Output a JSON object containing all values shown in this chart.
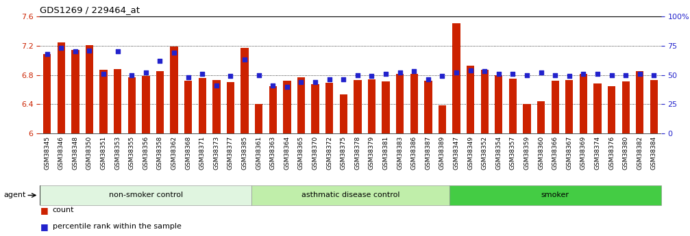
{
  "title": "GDS1269 / 229464_at",
  "ylim_left": [
    6.0,
    7.6
  ],
  "ylim_right": [
    0,
    100
  ],
  "yticks_left": [
    6.0,
    6.4,
    6.8,
    7.2,
    7.6
  ],
  "yticks_right": [
    0,
    25,
    50,
    75,
    100
  ],
  "ytick_labels_left": [
    "6",
    "6.4",
    "6.8",
    "7.2",
    "7.6"
  ],
  "ytick_labels_right": [
    "0",
    "25",
    "50",
    "75",
    "100%"
  ],
  "bar_color": "#cc2200",
  "dot_color": "#2222cc",
  "categories": [
    "GSM38345",
    "GSM38346",
    "GSM38348",
    "GSM38350",
    "GSM38351",
    "GSM38353",
    "GSM38355",
    "GSM38356",
    "GSM38358",
    "GSM38362",
    "GSM38368",
    "GSM38371",
    "GSM38373",
    "GSM38377",
    "GSM38385",
    "GSM38361",
    "GSM38363",
    "GSM38364",
    "GSM38365",
    "GSM38370",
    "GSM38372",
    "GSM38375",
    "GSM38378",
    "GSM38379",
    "GSM38381",
    "GSM38383",
    "GSM38386",
    "GSM38387",
    "GSM38389",
    "GSM38347",
    "GSM38349",
    "GSM38352",
    "GSM38354",
    "GSM38357",
    "GSM38359",
    "GSM38360",
    "GSM38366",
    "GSM38367",
    "GSM38369",
    "GSM38374",
    "GSM38376",
    "GSM38380",
    "GSM38382",
    "GSM38384"
  ],
  "bar_values": [
    7.09,
    7.25,
    7.14,
    7.21,
    6.87,
    6.88,
    6.77,
    6.79,
    6.85,
    7.19,
    6.72,
    6.76,
    6.73,
    6.7,
    7.17,
    6.4,
    6.65,
    6.72,
    6.77,
    6.67,
    6.69,
    6.53,
    6.73,
    6.74,
    6.71,
    6.81,
    6.81,
    6.72,
    6.38,
    7.51,
    6.93,
    6.87,
    6.8,
    6.75,
    6.4,
    6.44,
    6.72,
    6.73,
    6.81,
    6.68,
    6.65,
    6.71,
    6.85,
    6.73
  ],
  "dot_percentiles": [
    68,
    73,
    70,
    71,
    51,
    70,
    50,
    52,
    62,
    69,
    48,
    51,
    41,
    49,
    63,
    50,
    41,
    40,
    44,
    44,
    46,
    46,
    50,
    49,
    51,
    52,
    53,
    46,
    49,
    52,
    54,
    53,
    51,
    51,
    50,
    52,
    50,
    49,
    51,
    51,
    50,
    50,
    51,
    50
  ],
  "groups": [
    {
      "label": "non-smoker control",
      "start": 0,
      "end": 15,
      "color": "#e0f5e0"
    },
    {
      "label": "asthmatic disease control",
      "start": 15,
      "end": 29,
      "color": "#c0eeaa"
    },
    {
      "label": "smoker",
      "start": 29,
      "end": 44,
      "color": "#44cc44"
    }
  ],
  "bar_width": 0.55,
  "tick_label_color_left": "#cc2200",
  "tick_label_color_right": "#2222cc",
  "xtick_bg_color": "#d8d8d8",
  "plot_bg_color": "#ffffff"
}
